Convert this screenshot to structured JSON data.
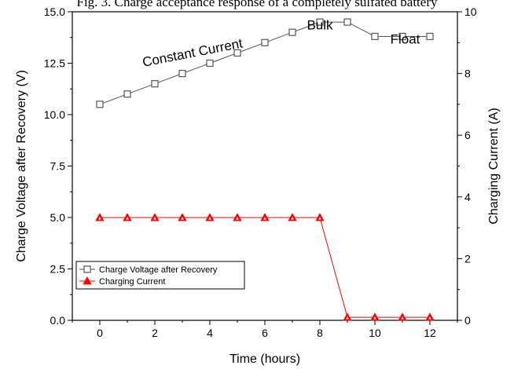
{
  "chart_data": {
    "type": "line",
    "title": "Fig. 3. Charge acceptance response of a completely sulfated battery",
    "xlabel": "Time (hours)",
    "ylabel_left": "Charge Voltage after Recovery (V)",
    "ylabel_right": "Charging Current (A)",
    "x": [
      0,
      1,
      2,
      3,
      4,
      5,
      6,
      7,
      8,
      9,
      10,
      11,
      12
    ],
    "xlim": [
      -1,
      13
    ],
    "ylim_left": [
      0,
      15
    ],
    "ylim_right": [
      0,
      10
    ],
    "x_ticks": [
      "0",
      "2",
      "4",
      "6",
      "8",
      "10",
      "12"
    ],
    "y_left_ticks": [
      "0.0",
      "2.5",
      "5.0",
      "7.5",
      "10.0",
      "12.5",
      "15.0"
    ],
    "y_right_ticks": [
      "0",
      "2",
      "4",
      "6",
      "8",
      "10"
    ],
    "grid": false,
    "legend_position": "bottom-left",
    "series": [
      {
        "name": "Charge Voltage after Recovery",
        "axis": "left",
        "marker": "open-square",
        "color": "#555555",
        "values": [
          10.5,
          11.0,
          11.5,
          12.0,
          12.5,
          13.0,
          13.5,
          14.0,
          14.5,
          14.5,
          13.8,
          13.8,
          13.8
        ]
      },
      {
        "name": "Charging Current",
        "axis": "right",
        "marker": "triangle",
        "color": "#ff0000",
        "values": [
          3.33,
          3.33,
          3.33,
          3.33,
          3.33,
          3.33,
          3.33,
          3.33,
          3.33,
          0.1,
          0.1,
          0.1,
          0.1
        ]
      }
    ],
    "annotations": [
      {
        "text": "Constant Current",
        "x": 3.4,
        "y": 12.8,
        "rotate": -11
      },
      {
        "text": "Bulk",
        "x": 8.0,
        "y": 14.15
      },
      {
        "text": "Float",
        "x": 11.1,
        "y": 13.45
      }
    ]
  }
}
